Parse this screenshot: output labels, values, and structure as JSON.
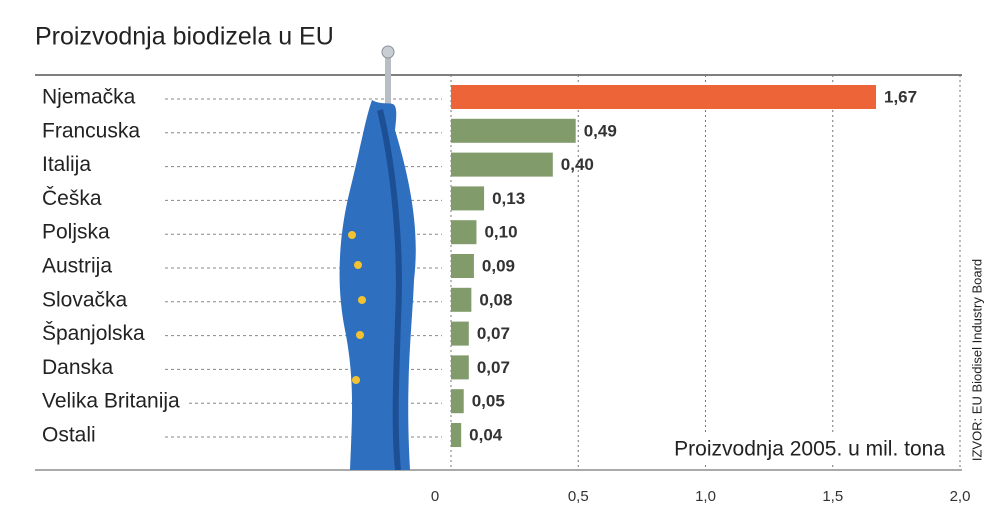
{
  "chart_data": {
    "type": "bar",
    "orientation": "horizontal",
    "title": "Proizvodnja biodizela u EU",
    "categories": [
      "Njemačka",
      "Francuska",
      "Italija",
      "Češka",
      "Poljska",
      "Austrija",
      "Slovačka",
      "Španjolska",
      "Danska",
      "Velika Britanija",
      "Ostali"
    ],
    "values": [
      1.67,
      0.49,
      0.4,
      0.13,
      0.1,
      0.09,
      0.08,
      0.07,
      0.07,
      0.05,
      0.04
    ],
    "value_labels": [
      "1,67",
      "0,49",
      "0,40",
      "0,13",
      "0,10",
      "0,09",
      "0,08",
      "0,07",
      "0,07",
      "0,05",
      "0,04"
    ],
    "colors": [
      "#ec6438",
      "#819b6b",
      "#819b6b",
      "#819b6b",
      "#819b6b",
      "#819b6b",
      "#819b6b",
      "#819b6b",
      "#819b6b",
      "#819b6b",
      "#819b6b"
    ],
    "xlim": [
      0,
      2
    ],
    "xticks": [
      0,
      {
        "value": 0.5,
        "label": "0,5"
      },
      {
        "value": 1,
        "label": "1,0"
      },
      {
        "value": 1.5,
        "label": "1,5"
      },
      {
        "value": 2,
        "label": "2,0"
      }
    ],
    "grid": true,
    "annotation": "Proizvodnja 2005. u mil. tona",
    "source": "IZVOR: EU Biodisel Industry Board"
  }
}
